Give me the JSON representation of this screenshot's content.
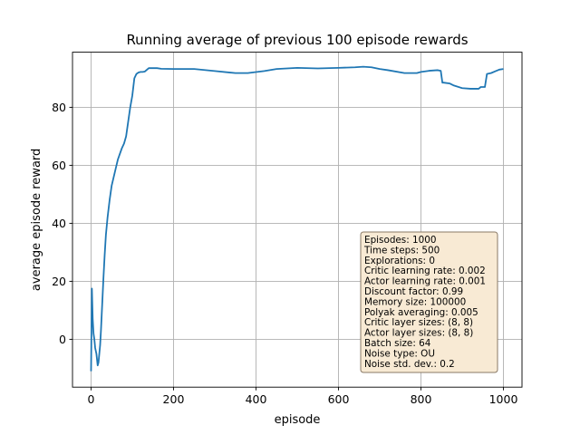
{
  "chart_data": {
    "type": "line",
    "title": "Running average of previous 100 episode rewards",
    "xlabel": "episode",
    "ylabel": "average episode reward",
    "xlim": [
      -45,
      1045
    ],
    "ylim": [
      -16.5,
      99
    ],
    "xticks": [
      0,
      200,
      400,
      600,
      800,
      1000
    ],
    "yticks": [
      0,
      20,
      40,
      60,
      80
    ],
    "grid": true,
    "line_color": "#1f77b4",
    "series": [
      {
        "x": [
          0,
          2,
          4,
          6,
          8,
          10,
          13,
          16,
          18,
          20,
          22,
          24,
          26,
          28,
          30,
          33,
          36,
          40,
          45,
          50,
          55,
          60,
          65,
          70,
          75,
          80,
          85,
          90,
          95,
          100,
          105,
          110,
          115,
          120,
          125,
          130,
          140,
          150,
          160,
          170,
          200,
          250,
          300,
          350,
          380,
          420,
          450,
          500,
          550,
          600,
          640,
          660,
          680,
          700,
          720,
          760,
          790,
          800,
          820,
          840,
          848,
          852,
          855,
          870,
          880,
          900,
          920,
          940,
          945,
          955,
          960,
          970,
          980,
          990,
          1000
        ],
        "y": [
          -11,
          17.5,
          7,
          2,
          0,
          -3,
          -5,
          -9,
          -8,
          -5,
          -2,
          3,
          9,
          15,
          21,
          29,
          36,
          42,
          48,
          53,
          56,
          59,
          62,
          64,
          66,
          67.5,
          70,
          75,
          80,
          84,
          90,
          91.5,
          92,
          92.2,
          92.2,
          92.3,
          93.5,
          93.5,
          93.5,
          93.3,
          93.2,
          93.2,
          92.5,
          91.8,
          91.8,
          92.5,
          93.2,
          93.6,
          93.4,
          93.6,
          93.8,
          94,
          93.8,
          93.2,
          92.8,
          91.8,
          91.8,
          92.2,
          92.6,
          92.8,
          92.6,
          88.5,
          88.5,
          88.2,
          87.5,
          86.6,
          86.4,
          86.4,
          87,
          87,
          91.5,
          91.8,
          92.4,
          93,
          93.2
        ]
      }
    ],
    "info_box": {
      "position": "bottom-right",
      "background": "#f8ead4",
      "border": "#8a7a66",
      "lines": [
        "Episodes: 1000",
        "Time steps: 500",
        "Explorations: 0",
        "Critic learning rate: 0.002",
        "Actor learning rate: 0.001",
        "Discount factor: 0.99",
        "Memory size: 100000",
        "Polyak averaging: 0.005",
        "Critic layer sizes: (8, 8)",
        "Actor layer sizes: (8, 8)",
        "Batch size: 64",
        "Noise type: OU",
        "Noise std. dev.: 0.2"
      ]
    }
  }
}
